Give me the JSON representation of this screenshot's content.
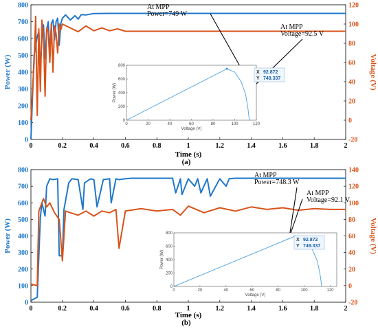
{
  "colors": {
    "power": "#1f77c9",
    "voltage": "#d95319",
    "inset_line": "#4aa0e0",
    "datatip_bg": "#eef6ff",
    "datatip_text": "#1f5fa8"
  },
  "chart_data": [
    {
      "type": "line",
      "caption": "(a)",
      "xlabel": "Time (s)",
      "ylabel_left": "Power (W)",
      "ylabel_right": "Voltage (V)",
      "xlim": [
        0,
        2
      ],
      "ylim_left": [
        0,
        800
      ],
      "ylim_right": [
        -20,
        120
      ],
      "xticks": [
        "0",
        "0.2",
        "0.4",
        "0.6",
        "0.8",
        "1",
        "1.2",
        "1.4",
        "1.6",
        "1.8",
        "2"
      ],
      "yticks_left": [
        "0",
        "100",
        "200",
        "300",
        "400",
        "500",
        "600",
        "700",
        "800"
      ],
      "yticks_right": [
        "-20",
        "0",
        "20",
        "40",
        "60",
        "80",
        "100",
        "120"
      ],
      "series": [
        {
          "axis": "left",
          "x": [
            0,
            0.02,
            0.04,
            0.05,
            0.06,
            0.07,
            0.08,
            0.09,
            0.1,
            0.11,
            0.12,
            0.13,
            0.14,
            0.15,
            0.16,
            0.17,
            0.18,
            0.19,
            0.2,
            0.22,
            0.25,
            0.28,
            0.3,
            0.32,
            0.35,
            0.4,
            0.5,
            0.6,
            2.0
          ],
          "y": [
            0,
            500,
            610,
            640,
            420,
            600,
            680,
            480,
            650,
            700,
            520,
            690,
            710,
            590,
            700,
            720,
            560,
            690,
            720,
            740,
            710,
            735,
            715,
            742,
            740,
            748,
            749,
            749,
            749
          ]
        },
        {
          "axis": "right",
          "x": [
            0,
            0.02,
            0.03,
            0.04,
            0.05,
            0.06,
            0.07,
            0.08,
            0.09,
            0.1,
            0.11,
            0.12,
            0.13,
            0.14,
            0.15,
            0.16,
            0.17,
            0.18,
            0.19,
            0.2,
            0.25,
            0.3,
            0.35,
            0.4,
            0.45,
            0.5,
            0.55,
            0.6,
            0.7,
            2.0
          ],
          "y": [
            0,
            60,
            108,
            5,
            95,
            30,
            104,
            88,
            25,
            96,
            92,
            60,
            100,
            50,
            98,
            90,
            70,
            100,
            94,
            100,
            96,
            92,
            98,
            93,
            96,
            93,
            95,
            92.5,
            92.5,
            92.5
          ]
        }
      ],
      "annotations": [
        {
          "lines": [
            "At MPP",
            "Power=749 W"
          ]
        },
        {
          "lines": [
            "At MPP",
            "Voltage=92.5 V"
          ]
        }
      ],
      "inset": {
        "type": "line",
        "xlabel": "Voltage (V)",
        "ylabel": "Power (W)",
        "xlim": [
          0,
          120
        ],
        "ylim": [
          0,
          800
        ],
        "xticks": [
          "0",
          "20",
          "40",
          "60",
          "80",
          "100",
          "120"
        ],
        "yticks": [
          "0",
          "200",
          "400",
          "600",
          "800"
        ],
        "x": [
          0,
          92.872,
          100,
          106,
          110,
          112,
          113.5
        ],
        "y": [
          0,
          749.337,
          700,
          560,
          380,
          200,
          0
        ],
        "datatip": {
          "x_label": "X",
          "x_value": "92.872",
          "y_label": "Y",
          "y_value": "749.337"
        }
      }
    },
    {
      "type": "line",
      "caption": "(b)",
      "xlabel": "Time (s)",
      "ylabel_left": "Power (W)",
      "ylabel_right": "Voltage (V)",
      "xlim": [
        0,
        2
      ],
      "ylim_left": [
        0,
        800
      ],
      "ylim_right": [
        -20,
        140
      ],
      "xticks": [
        "0",
        "0.2",
        "0.4",
        "0.6",
        "0.8",
        "1",
        "1.2",
        "1.4",
        "1.6",
        "1.8",
        "2"
      ],
      "yticks_left": [
        "0",
        "100",
        "200",
        "300",
        "400",
        "500",
        "600",
        "700",
        "800"
      ],
      "yticks_right": [
        "-20",
        "0",
        "20",
        "40",
        "60",
        "80",
        "100",
        "120",
        "140"
      ],
      "series": [
        {
          "axis": "left",
          "x": [
            0,
            0.04,
            0.06,
            0.07,
            0.09,
            0.1,
            0.12,
            0.14,
            0.17,
            0.18,
            0.2,
            0.21,
            0.24,
            0.26,
            0.3,
            0.33,
            0.34,
            0.38,
            0.4,
            0.42,
            0.46,
            0.5,
            0.51,
            0.54,
            0.56,
            0.6,
            0.64,
            0.8,
            0.9,
            0.92,
            0.95,
            0.96,
            1.0,
            1.04,
            1.06,
            1.08,
            1.12,
            1.14,
            1.2,
            1.24,
            1.26,
            1.3,
            1.35,
            1.6,
            2.0
          ],
          "y": [
            10,
            30,
            510,
            600,
            520,
            700,
            745,
            740,
            745,
            280,
            280,
            560,
            720,
            745,
            740,
            560,
            720,
            745,
            740,
            575,
            740,
            745,
            600,
            745,
            740,
            745,
            748,
            748,
            748,
            660,
            745,
            650,
            745,
            700,
            745,
            660,
            745,
            640,
            745,
            700,
            745,
            748,
            748,
            748,
            748
          ]
        },
        {
          "axis": "right",
          "x": [
            0,
            0.04,
            0.05,
            0.07,
            0.08,
            0.1,
            0.12,
            0.15,
            0.18,
            0.2,
            0.22,
            0.25,
            0.3,
            0.35,
            0.4,
            0.45,
            0.5,
            0.54,
            0.56,
            0.6,
            0.7,
            0.8,
            0.9,
            0.95,
            1.0,
            1.1,
            1.2,
            1.3,
            1.4,
            1.5,
            1.6,
            1.7,
            1.8,
            1.9,
            2.0
          ],
          "y": [
            2,
            0,
            90,
            100,
            105,
            95,
            100,
            88,
            80,
            30,
            90,
            88,
            85,
            90,
            84,
            90,
            88,
            92,
            45,
            90,
            93,
            90,
            92,
            85,
            96,
            88,
            94,
            90,
            95,
            92,
            94,
            91,
            93,
            92,
            92
          ]
        }
      ],
      "annotations": [
        {
          "lines": [
            "At MPP",
            "Power=748.3 W"
          ]
        },
        {
          "lines": [
            "At MPP",
            "Voltage=92.1 V"
          ]
        }
      ],
      "inset": {
        "type": "line",
        "xlabel": "Voltage (V)",
        "ylabel": "Power (W)",
        "xlim": [
          0,
          125
        ],
        "ylim": [
          0,
          800
        ],
        "xticks": [
          "0",
          "20",
          "40",
          "60",
          "80",
          "100",
          "120"
        ],
        "yticks": [
          "0",
          "200",
          "400",
          "600",
          "800"
        ],
        "x": [
          0,
          92.872,
          100,
          106,
          110,
          112,
          113.5
        ],
        "y": [
          0,
          749.337,
          700,
          560,
          380,
          200,
          0
        ],
        "datatip": {
          "x_label": "X",
          "x_value": "92.872",
          "y_label": "Y",
          "y_value": "749.337"
        }
      }
    }
  ]
}
